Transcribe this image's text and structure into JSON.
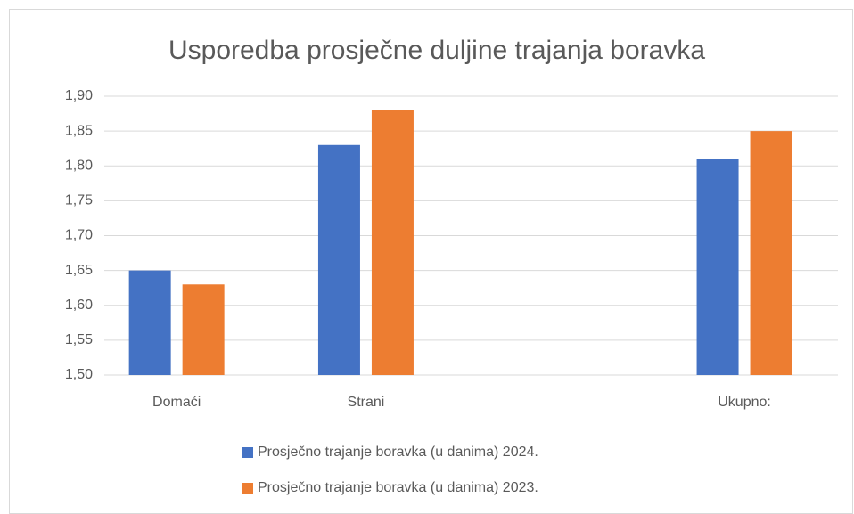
{
  "chart_data": {
    "type": "bar",
    "title": "Usporedba prosječne duljine trajanja boravka",
    "categories": [
      "Domaći",
      "Strani",
      null,
      "Ukupno:"
    ],
    "series": [
      {
        "name": "Prosječno trajanje boravka (u danima) 2024.",
        "color": "#4472c4",
        "values": [
          1.65,
          1.83,
          null,
          1.81
        ]
      },
      {
        "name": "Prosječno trajanje boravka (u danima) 2023.",
        "color": "#ed7d31",
        "values": [
          1.63,
          1.88,
          null,
          1.85
        ]
      }
    ],
    "ylim": [
      1.5,
      1.9
    ],
    "yticks": [
      {
        "value": 1.5,
        "label": "1,50"
      },
      {
        "value": 1.55,
        "label": "1,55"
      },
      {
        "value": 1.6,
        "label": "1,60"
      },
      {
        "value": 1.65,
        "label": "1,65"
      },
      {
        "value": 1.7,
        "label": "1,70"
      },
      {
        "value": 1.75,
        "label": "1,75"
      },
      {
        "value": 1.8,
        "label": "1,80"
      },
      {
        "value": 1.85,
        "label": "1,85"
      },
      {
        "value": 1.9,
        "label": "1,90"
      }
    ],
    "grid": true,
    "legend": "bottom"
  }
}
